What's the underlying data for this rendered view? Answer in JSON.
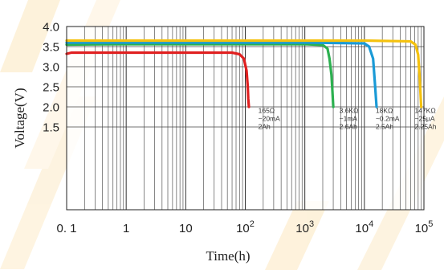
{
  "chart_data": {
    "type": "line",
    "xlabel": "Time(h)",
    "ylabel": "Voltage(V)",
    "xscale": "log",
    "xlim": [
      0.1,
      100000
    ],
    "ylim": [
      1.0,
      4.0
    ],
    "grid": true,
    "x_tick_labels": [
      {
        "value": 0.1,
        "text": "0. 1"
      },
      {
        "value": 1,
        "text": "1"
      },
      {
        "value": 10,
        "text": "10"
      },
      {
        "value": 100,
        "base": "10",
        "exp": "2"
      },
      {
        "value": 1000,
        "base": "10",
        "exp": "3"
      },
      {
        "value": 10000,
        "base": "10",
        "exp": "4"
      },
      {
        "value": 100000,
        "base": "10",
        "exp": "5"
      }
    ],
    "y_ticks": [
      {
        "value": 4.0,
        "text": "4.0"
      },
      {
        "value": 3.5,
        "text": "3.5"
      },
      {
        "value": 3.0,
        "text": "3.0"
      },
      {
        "value": 2.5,
        "text": "2.5"
      },
      {
        "value": 2.0,
        "text": "2.0"
      },
      {
        "value": 1.5,
        "text": "1.5"
      }
    ],
    "series": [
      {
        "color": "#e02020",
        "x": [
          0.1,
          0.12,
          1,
          10,
          60,
          80,
          95,
          105,
          110,
          112,
          115
        ],
        "y": [
          3.32,
          3.35,
          3.35,
          3.35,
          3.35,
          3.31,
          3.2,
          2.9,
          2.5,
          2.2,
          2.0
        ]
      },
      {
        "color": "#2cb050",
        "x": [
          0.1,
          1,
          10,
          100,
          1000,
          2000,
          2400,
          2600,
          2800,
          2900,
          3000
        ],
        "y": [
          3.55,
          3.56,
          3.56,
          3.56,
          3.56,
          3.54,
          3.45,
          3.2,
          2.8,
          2.4,
          2.0
        ]
      },
      {
        "color": "#1a9ad6",
        "x": [
          0.1,
          1,
          10,
          100,
          1000,
          10000,
          12000,
          14000,
          15000,
          16000
        ],
        "y": [
          3.6,
          3.6,
          3.6,
          3.6,
          3.6,
          3.58,
          3.5,
          3.2,
          2.6,
          2.0
        ]
      },
      {
        "color": "#f5c20e",
        "x": [
          0.1,
          1,
          10,
          100,
          1000,
          10000,
          60000,
          72000,
          80000,
          85000,
          90000
        ],
        "y": [
          3.65,
          3.65,
          3.65,
          3.65,
          3.65,
          3.65,
          3.63,
          3.55,
          3.3,
          2.7,
          2.0
        ]
      }
    ],
    "annotations": [
      {
        "x": 165,
        "lines": [
          "165Ω",
          "~20mA",
          "2Ah"
        ]
      },
      {
        "x": 3800,
        "lines": [
          "3.6KΩ",
          "~1mA",
          "2.6Ah"
        ]
      },
      {
        "x": 15500,
        "lines": [
          "18KΩ",
          "~0.2mA",
          "2.5Ah"
        ]
      },
      {
        "x": 70000,
        "lines": [
          "147KΩ",
          "~25μA",
          "2.25Ah"
        ]
      }
    ]
  }
}
